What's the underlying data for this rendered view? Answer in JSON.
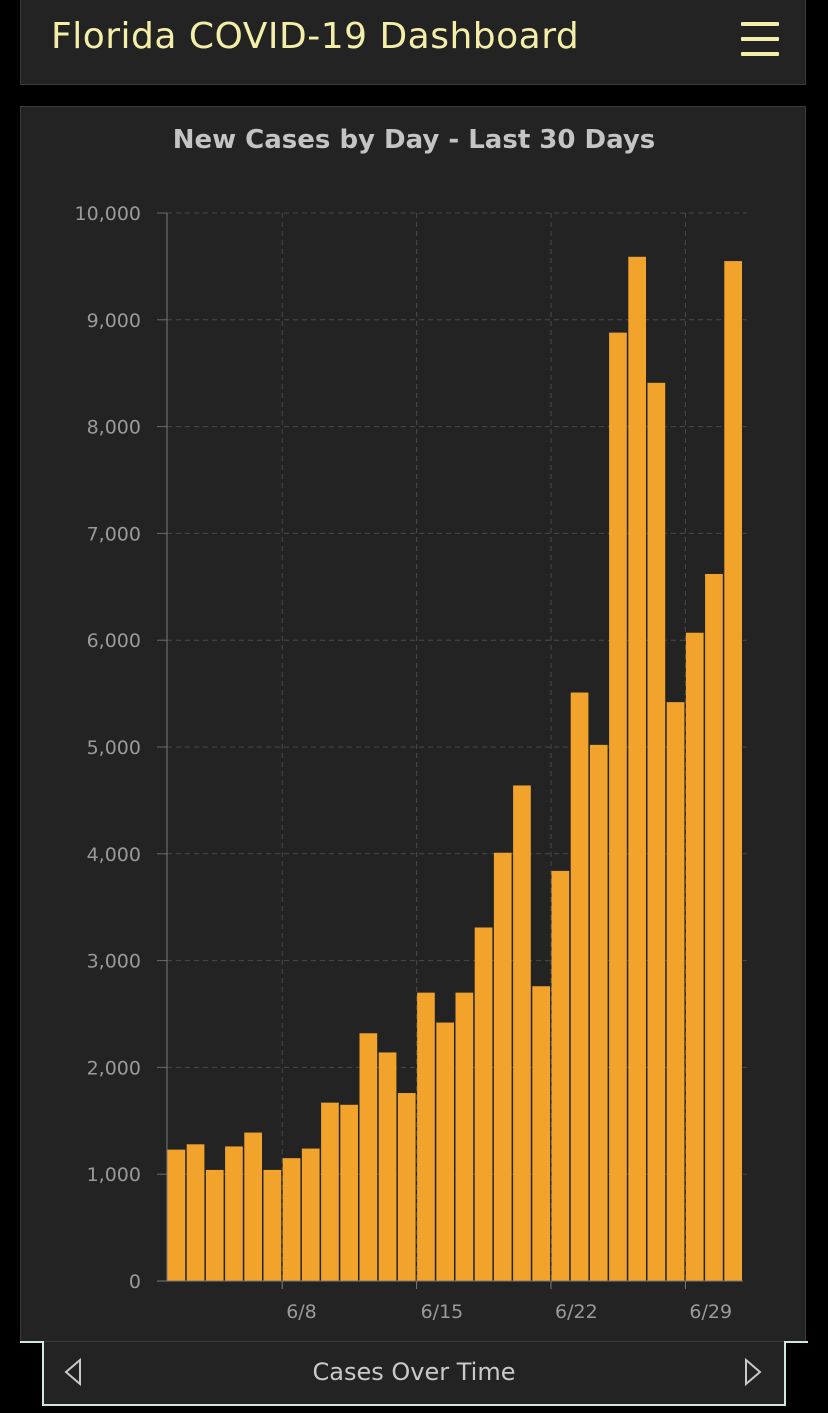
{
  "header": {
    "title": "Florida COVID-19 Dashboard",
    "menu_icon": "hamburger-menu-icon"
  },
  "colors": {
    "bar": "#f1a32b",
    "title": "#f3efa8",
    "panel": "#232323"
  },
  "chart_data": {
    "type": "bar",
    "title": "New Cases by Day - Last 30 Days",
    "xlabel": "",
    "ylabel": "",
    "ylim": [
      0,
      10000
    ],
    "yticks": [
      0,
      1000,
      2000,
      3000,
      4000,
      5000,
      6000,
      7000,
      8000,
      9000,
      10000
    ],
    "ytick_labels": [
      "0",
      "1,000",
      "2,000",
      "3,000",
      "4,000",
      "5,000",
      "6,000",
      "7,000",
      "8,000",
      "9,000",
      "10,000"
    ],
    "x_tick_labels": [
      {
        "label": "6/8",
        "index": 6
      },
      {
        "label": "6/15",
        "index": 13
      },
      {
        "label": "6/22",
        "index": 20
      },
      {
        "label": "6/29",
        "index": 27
      }
    ],
    "grid": true,
    "values": [
      1230,
      1280,
      1040,
      1260,
      1390,
      1040,
      1150,
      1240,
      1670,
      1650,
      2320,
      2140,
      1760,
      2700,
      2420,
      2700,
      3310,
      4010,
      4640,
      2760,
      3840,
      5510,
      5020,
      8880,
      9590,
      8410,
      5420,
      6070,
      6620,
      9550
    ]
  },
  "footer": {
    "label": "Cases Over Time",
    "prev_icon": "triangle-left-icon",
    "next_icon": "triangle-right-icon"
  }
}
